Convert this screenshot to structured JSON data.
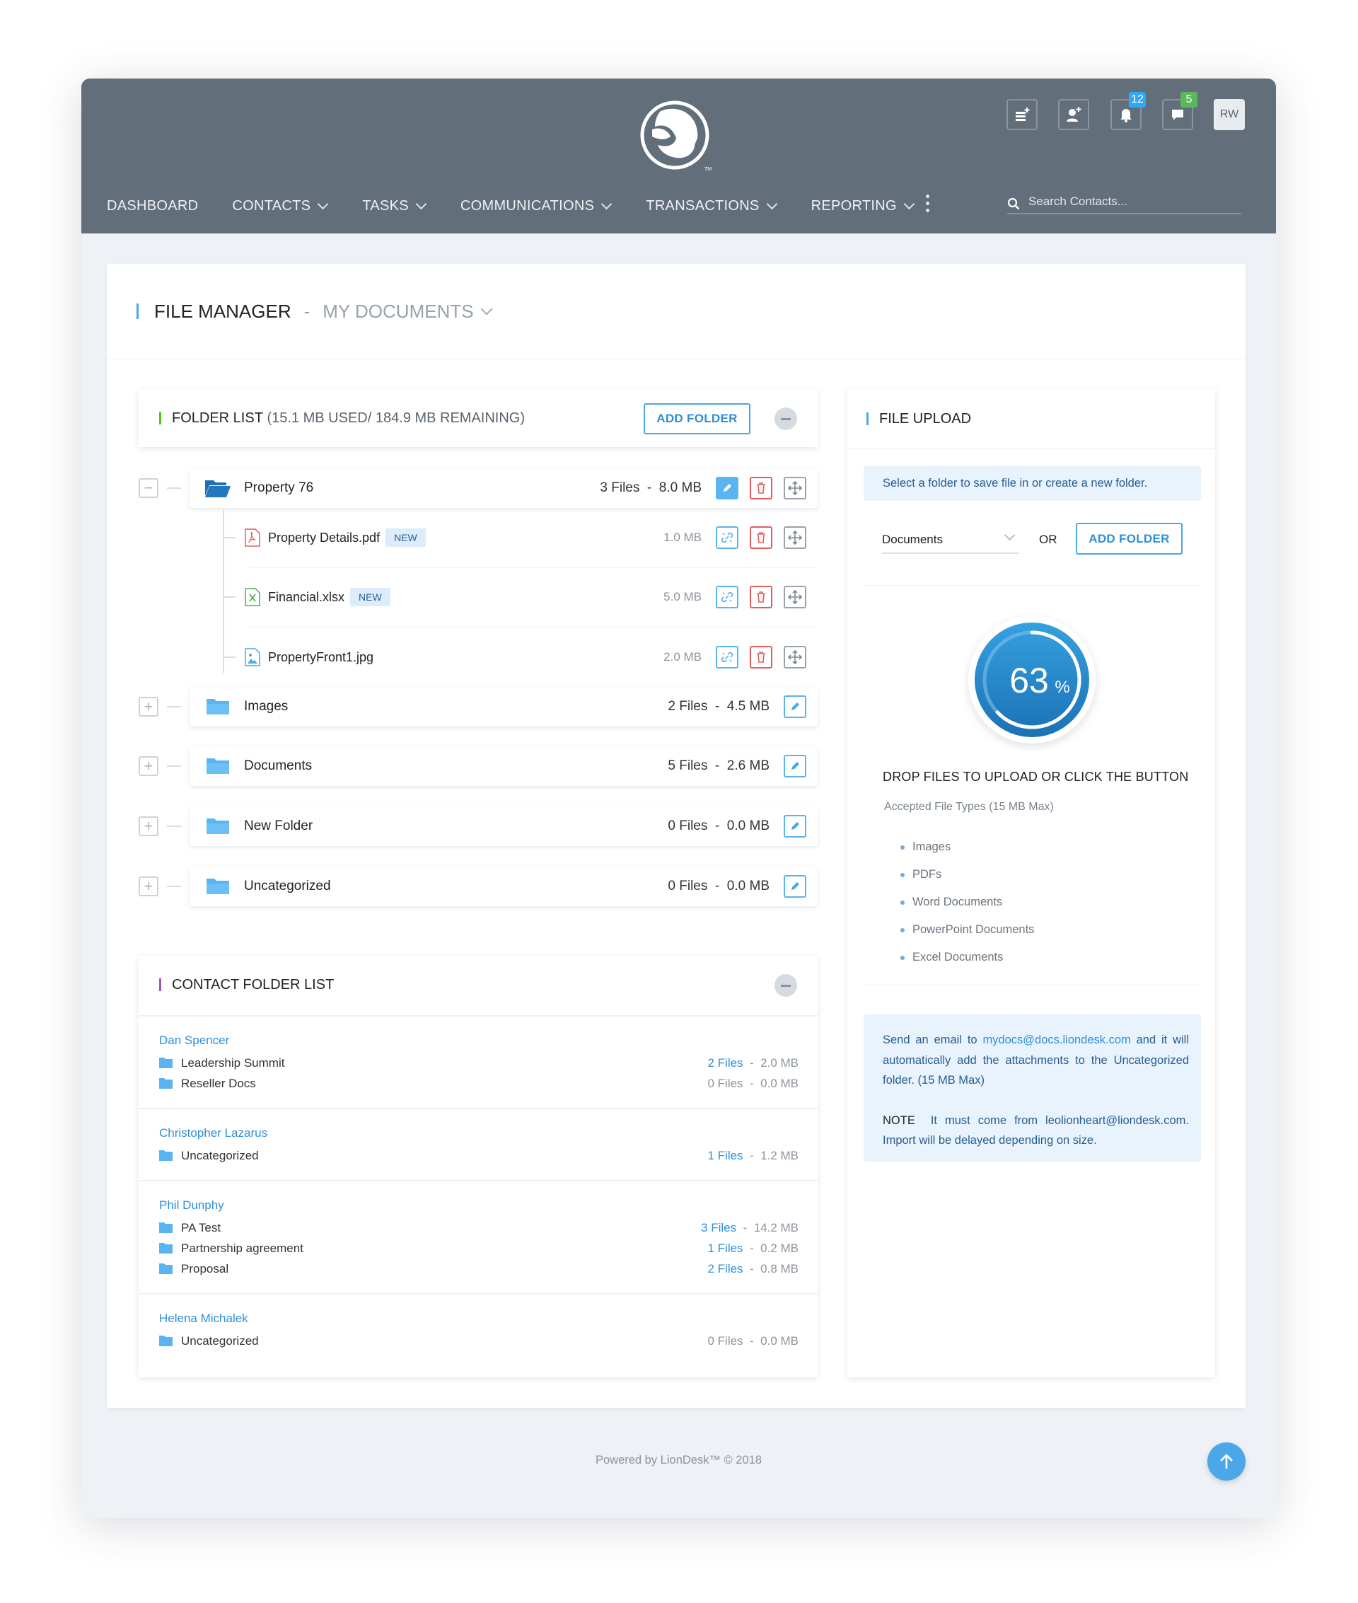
{
  "colors": {
    "header": "#636e7b",
    "accent": "#2d8fd8",
    "folder_list_bar": "#52c41a",
    "contact_bar": "#9b59b6",
    "title_bar": "#4aa8e8",
    "notif_badge": "#2fa8f5",
    "msg_badge": "#5cb85c"
  },
  "nav": {
    "items": [
      {
        "label": "DASHBOARD",
        "has_menu": false
      },
      {
        "label": "CONTACTS",
        "has_menu": true
      },
      {
        "label": "TASKS",
        "has_menu": true
      },
      {
        "label": "COMMUNICATIONS",
        "has_menu": true
      },
      {
        "label": "TRANSACTIONS",
        "has_menu": true
      },
      {
        "label": "REPORTING",
        "has_menu": true
      }
    ],
    "search_placeholder": "Search Contacts...",
    "logo_tm": "TM"
  },
  "toolbar": {
    "notifications_count": "12",
    "messages_count": "5",
    "avatar_initials": "RW"
  },
  "page": {
    "title": "FILE MANAGER",
    "separator": "-",
    "subtitle": "MY DOCUMENTS"
  },
  "folder_list": {
    "title": "FOLDER LIST",
    "usage": "(15.1 MB USED/ 184.9 MB REMAINING)",
    "add_folder": "ADD FOLDER",
    "folders": [
      {
        "name": "Property 76",
        "meta": "3 Files  -  8.0 MB",
        "expanded": true
      },
      {
        "name": "Images",
        "meta": "2 Files  -  4.5 MB"
      },
      {
        "name": "Documents",
        "meta": "5 Files  -  2.6 MB"
      },
      {
        "name": "New Folder",
        "meta": "0 Files  -  0.0 MB"
      },
      {
        "name": "Uncategorized",
        "meta": "0 Files  -  0.0 MB"
      }
    ],
    "files": [
      {
        "name": "Property Details.pdf",
        "badge": "NEW",
        "size": "1.0 MB",
        "type": "pdf"
      },
      {
        "name": "Financial.xlsx",
        "badge": "NEW",
        "size": "5.0 MB",
        "type": "excel"
      },
      {
        "name": "PropertyFront1.jpg",
        "size": "2.0 MB",
        "type": "image"
      }
    ]
  },
  "contact_folders": {
    "title": "CONTACT FOLDER LIST",
    "contacts": [
      {
        "name": "Dan Spencer",
        "folders": [
          {
            "name": "Leadership Summit",
            "files": "2 Files",
            "size": "2.0 MB"
          },
          {
            "name": "Reseller Docs",
            "files": "0 Files",
            "size": "0.0 MB"
          }
        ]
      },
      {
        "name": "Christopher Lazarus",
        "folders": [
          {
            "name": "Uncategorized",
            "files": "1 Files",
            "size": "1.2 MB"
          }
        ]
      },
      {
        "name": "Phil Dunphy",
        "folders": [
          {
            "name": "PA Test",
            "files": "3 Files",
            "size": "14.2 MB"
          },
          {
            "name": "Partnership agreement",
            "files": "1 Files",
            "size": "0.2 MB"
          },
          {
            "name": "Proposal",
            "files": "2 Files",
            "size": "0.8 MB"
          }
        ]
      },
      {
        "name": "Helena Michalek",
        "folders": [
          {
            "name": "Uncategorized",
            "files": "0 Files",
            "size": "0.0 MB"
          }
        ]
      }
    ],
    "dash": "-"
  },
  "upload": {
    "title": "FILE UPLOAD",
    "info": "Select a folder to save file in or create a new folder.",
    "selected_folder": "Documents",
    "or": "OR",
    "add_folder": "ADD FOLDER",
    "progress_value": "63",
    "progress_unit": "%",
    "progress_percent": 63,
    "drop_text": "DROP FILES TO UPLOAD OR CLICK THE BUTTON",
    "accepted": "Accepted File Types (15 MB Max)",
    "types": [
      "Images",
      "PDFs",
      "Word Documents",
      "PowerPoint Documents",
      "Excel Documents"
    ],
    "email_pre": "Send an email to ",
    "email_addr": "mydocs@docs.liondesk.com",
    "email_post": " and it will automatically add the attachments to the Uncategorized folder. (15 MB Max)",
    "note_label": "NOTE",
    "note_text": "It must come from leolionheart@liondesk.com. Import will be delayed depending on size."
  },
  "footer": {
    "text": "Powered by LionDesk™ © 2018"
  }
}
